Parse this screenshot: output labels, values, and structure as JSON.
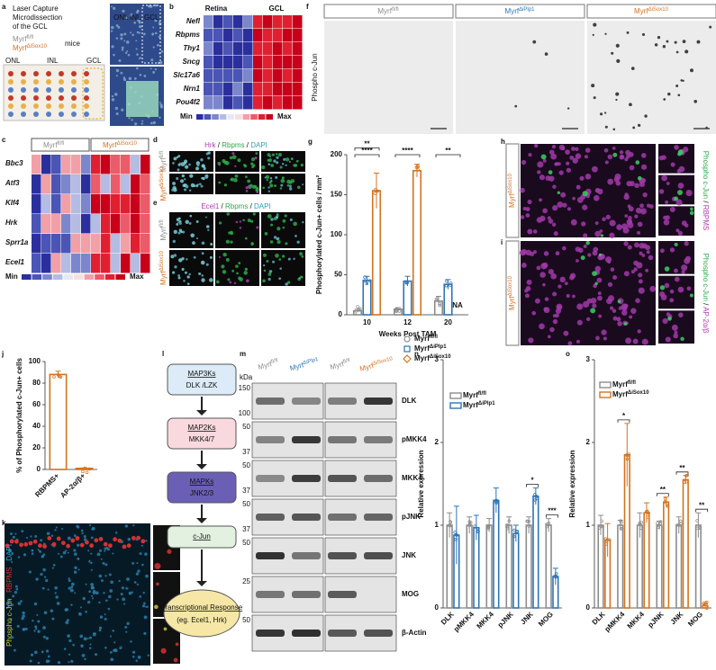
{
  "panel_letters": [
    "a",
    "b",
    "c",
    "d",
    "e",
    "f",
    "g",
    "h",
    "i",
    "j",
    "k",
    "l",
    "m",
    "n",
    "o"
  ],
  "a": {
    "title_lines": [
      "Laser Capture",
      "Microdissection",
      "of the GCL"
    ],
    "genotypes": [
      {
        "base": "Myrf",
        "sup": "fl/fl",
        "color": "#8c8c8c"
      },
      {
        "base": "Myrf",
        "sup": "ΔiSox10",
        "color": "#d4731f"
      }
    ],
    "suffix": "mice",
    "layers": [
      "ONL",
      "INL",
      "GCL"
    ],
    "photo_layers": [
      "ONL",
      "INL",
      "GCL"
    ]
  },
  "b": {
    "columns": [
      "Retina",
      "GCL"
    ],
    "genes": [
      "Nefl",
      "Rbpms",
      "Thy1",
      "Sncg",
      "Slc17a6",
      "Nrn1",
      "Pou4f2"
    ],
    "scale": [
      "Min",
      "Max"
    ]
  },
  "c": {
    "genotypes": [
      {
        "base": "Myrf",
        "sup": "fl/fl",
        "color": "#8c8c8c"
      },
      {
        "base": "Myrf",
        "sup": "ΔiSox10",
        "color": "#d4731f"
      }
    ],
    "genes": [
      "Bbc3",
      "Atf3",
      "Klf4",
      "Hrk",
      "Sprr1a",
      "Ecel1"
    ],
    "scale": [
      "Min",
      "Max"
    ]
  },
  "d": {
    "stain": [
      {
        "text": "Hrk",
        "color": "#b03ab0"
      },
      {
        "text": "Rbpms",
        "color": "#2ea84a"
      },
      {
        "text": "DAPI",
        "color": "#2aa0b8"
      }
    ],
    "separator": " / ",
    "genotypes": [
      {
        "base": "Myrf",
        "sup": "fl/fl",
        "color": "#8c8c8c"
      },
      {
        "base": "Myrf",
        "sup": "ΔiSox10",
        "color": "#d4731f"
      }
    ]
  },
  "e": {
    "stain": [
      {
        "text": "Ecel1",
        "color": "#b03ab0"
      },
      {
        "text": "Rbpms",
        "color": "#2ea84a"
      },
      {
        "text": "DAPI",
        "color": "#2aa0b8"
      }
    ],
    "separator": " / ",
    "genotypes": [
      {
        "base": "Myrf",
        "sup": "fl/fl",
        "color": "#8c8c8c"
      },
      {
        "base": "Myrf",
        "sup": "ΔiSox10",
        "color": "#d4731f"
      }
    ]
  },
  "f": {
    "stain": "Phospho c-Jun",
    "genotypes": [
      {
        "base": "Myrf",
        "sup": "fl/fl",
        "color": "#8c8c8c"
      },
      {
        "base": "Myrf",
        "sup": "ΔiPlp1",
        "color": "#2e75b6"
      },
      {
        "base": "Myrf",
        "sup": "ΔiSox10",
        "color": "#d4731f"
      }
    ]
  },
  "h": {
    "genotype": {
      "base": "Myrf",
      "sup": "ΔiSox10",
      "color": "#d4731f"
    },
    "stain": [
      {
        "text": "Phospho c-Jun",
        "color": "#2ea84a"
      },
      {
        "text": "RBPMS",
        "color": "#b03ab0"
      }
    ],
    "separator": " / "
  },
  "i": {
    "genotype": {
      "base": "Myrf",
      "sup": "ΔiSox10",
      "color": "#d4731f"
    },
    "stain": [
      {
        "text": "Phospho c-Jun",
        "color": "#2ea84a"
      },
      {
        "text": "AP-2α/β",
        "color": "#b03ab0"
      }
    ],
    "separator": " / "
  },
  "k": {
    "stain": [
      {
        "text": "Phospho c-Jun",
        "color": "#c8c830"
      },
      {
        "text": "RBPMS",
        "color": "#d83030"
      },
      {
        "text": "DAPI",
        "color": "#30a8d0"
      }
    ],
    "separator": " / ",
    "layers": [
      "GCL",
      "INL",
      "ONL"
    ]
  },
  "l": {
    "nodes": [
      {
        "title": "MAP3Ks",
        "sub": "DLK /LZK",
        "color": "#dcebf7"
      },
      {
        "title": "MAP2Ks",
        "sub": "MKK4/7",
        "color": "#f9d9de"
      },
      {
        "title": "MAPKs",
        "sub": "JNK2/3",
        "color": "#6a5fb5"
      },
      {
        "title": "c-Jun",
        "sub": "",
        "color": "#e3f1e0"
      }
    ],
    "final": {
      "title": "Transcriptional Response",
      "sub": "(eg. Ecel1, Hrk)",
      "color": "#f6e7a6"
    }
  },
  "m": {
    "kda_label": "kDa",
    "genotypes": [
      {
        "base": "Myrf",
        "sup": "fl/fl",
        "color": "#8c8c8c"
      },
      {
        "base": "Myrf",
        "sup": "ΔiPlp1",
        "color": "#2e75b6"
      },
      {
        "base": "Myrf",
        "sup": "fl/fl",
        "color": "#8c8c8c"
      },
      {
        "base": "Myrf",
        "sup": "ΔiSox10",
        "color": "#d4731f"
      }
    ],
    "rows": [
      {
        "protein": "DLK",
        "kda": [
          150,
          100
        ]
      },
      {
        "protein": "pMKK4",
        "kda": [
          50,
          37
        ]
      },
      {
        "protein": "MKK4",
        "kda": [
          50,
          37
        ]
      },
      {
        "protein": "pJNK",
        "kda": [
          50,
          37
        ]
      },
      {
        "protein": "JNK",
        "kda": [
          50
        ]
      },
      {
        "protein": "MOG",
        "kda": [
          25
        ]
      },
      {
        "protein": "β-Actin",
        "kda": [
          50
        ]
      }
    ]
  },
  "chart_data": [
    {
      "type": "bar",
      "ylabel": "Phosphorylated c-Jun+ cells / mm²",
      "xlabel": "Weeks Post TAM",
      "categories": [
        "10",
        "12",
        "20"
      ],
      "ylim": [
        0,
        200
      ],
      "yticks": [
        0,
        50,
        100,
        150,
        200
      ],
      "series": [
        {
          "name": "Myrf",
          "name_sup": "fl/fl",
          "color": "#8c8c8c",
          "marker": "circle",
          "values": [
            5,
            7,
            17
          ],
          "errors": [
            2,
            2,
            6
          ]
        },
        {
          "name": "Myrf",
          "name_sup": "ΔiPlp1",
          "color": "#2e75b6",
          "marker": "square",
          "values": [
            43,
            42,
            38
          ],
          "errors": [
            5,
            6,
            6
          ]
        },
        {
          "name": "Myrf",
          "name_sup": "ΔiSox10",
          "color": "#d4731f",
          "marker": "diamond",
          "values": [
            155,
            180,
            null
          ],
          "errors": [
            22,
            8,
            null
          ]
        }
      ],
      "annotations": [
        {
          "text": "**",
          "category": "10"
        },
        {
          "text": "****",
          "category": "10"
        },
        {
          "text": "****",
          "category": "12"
        },
        {
          "text": "**",
          "category": "20"
        },
        {
          "text": "NA",
          "category": "20",
          "series": 2
        }
      ]
    },
    {
      "type": "bar",
      "ylabel": "% of Phosphorylated c-Jun+ cells",
      "categories": [
        "RBPMS+",
        "AP-2α/β+"
      ],
      "ylim": [
        0,
        100
      ],
      "yticks": [
        0,
        20,
        40,
        60,
        80,
        100
      ],
      "values": [
        88,
        1
      ],
      "errors": [
        3,
        0.5
      ],
      "color": "#d4731f"
    },
    {
      "type": "bar",
      "ylabel": "Relative expression",
      "categories": [
        "DLK",
        "pMKK4",
        "MKK4",
        "pJNK",
        "JNK",
        "MOG"
      ],
      "ylim": [
        0,
        3
      ],
      "yticks": [
        0,
        1,
        2,
        3
      ],
      "series": [
        {
          "name": "Myrf",
          "name_sup": "fl/fl",
          "color": "#8c8c8c",
          "values": [
            1,
            1,
            1,
            1,
            1,
            1
          ],
          "errors": [
            0.15,
            0.1,
            0.08,
            0.1,
            0.1,
            0.08
          ]
        },
        {
          "name": "Myrf",
          "name_sup": "ΔiPlp1",
          "color": "#2e75b6",
          "values": [
            0.88,
            0.97,
            1.3,
            0.9,
            1.35,
            0.38
          ],
          "errors": [
            0.35,
            0.15,
            0.15,
            0.1,
            0.1,
            0.1
          ]
        }
      ],
      "annotations": [
        {
          "text": "*",
          "category": "JNK"
        },
        {
          "text": "***",
          "category": "MOG"
        }
      ]
    },
    {
      "type": "bar",
      "ylabel": "Relative expression",
      "categories": [
        "DLK",
        "pMKK4",
        "MKK4",
        "pJNK",
        "JNK",
        "MOG"
      ],
      "ylim": [
        0,
        3
      ],
      "yticks": [
        0,
        1,
        2,
        3
      ],
      "series": [
        {
          "name": "Myrf",
          "name_sup": "fl/fl",
          "color": "#8c8c8c",
          "values": [
            1,
            1,
            1,
            1,
            1,
            1
          ],
          "errors": [
            0.12,
            0.06,
            0.15,
            0.05,
            0.1,
            0.15
          ]
        },
        {
          "name": "Myrf",
          "name_sup": "ΔiSox10",
          "color": "#d4731f",
          "values": [
            0.82,
            1.85,
            1.15,
            1.28,
            1.55,
            0.03
          ],
          "errors": [
            0.2,
            0.38,
            0.12,
            0.06,
            0.05,
            0.02
          ]
        }
      ],
      "annotations": [
        {
          "text": "*",
          "category": "pMKK4"
        },
        {
          "text": "**",
          "category": "pJNK"
        },
        {
          "text": "**",
          "category": "JNK"
        },
        {
          "text": "**",
          "category": "MOG"
        }
      ]
    }
  ]
}
